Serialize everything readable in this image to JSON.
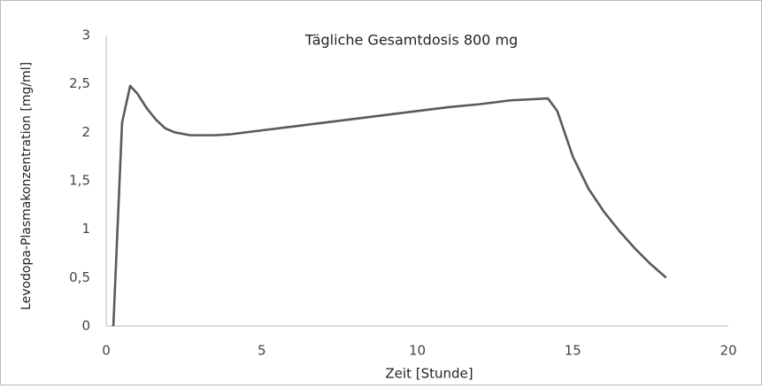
{
  "chart_data": {
    "type": "line",
    "title": "Tägliche Gesamtdosis 800 mg",
    "x_label": "Zeit [Stunde]",
    "y_label": "Levodopa-Plasmakonzentration [mg/ml]",
    "x": [
      0.23,
      0.51,
      0.77,
      1.0,
      1.3,
      1.6,
      1.9,
      2.2,
      2.7,
      3.5,
      4,
      5,
      6,
      7,
      8,
      9,
      10,
      11,
      12,
      13,
      14.2,
      14.5,
      15,
      15.5,
      16,
      16.5,
      17,
      17.5,
      18
    ],
    "values": [
      0,
      2.1,
      2.48,
      2.4,
      2.25,
      2.13,
      2.04,
      2.0,
      1.97,
      1.97,
      1.98,
      2.02,
      2.06,
      2.1,
      2.14,
      2.18,
      2.22,
      2.26,
      2.29,
      2.33,
      2.35,
      2.22,
      1.75,
      1.42,
      1.18,
      0.98,
      0.8,
      0.64,
      0.5
    ],
    "color": "#5a5a5a",
    "xlim": [
      0,
      20
    ],
    "xticks": [
      0,
      5,
      10,
      15,
      20
    ],
    "ylim": [
      0,
      3
    ],
    "yticks": [
      0,
      {
        "value": 0.5,
        "label": "0,5"
      },
      1,
      {
        "value": 1.5,
        "label": "1,5"
      },
      2,
      {
        "value": 2.5,
        "label": "2,5"
      },
      3
    ],
    "grid": false
  }
}
